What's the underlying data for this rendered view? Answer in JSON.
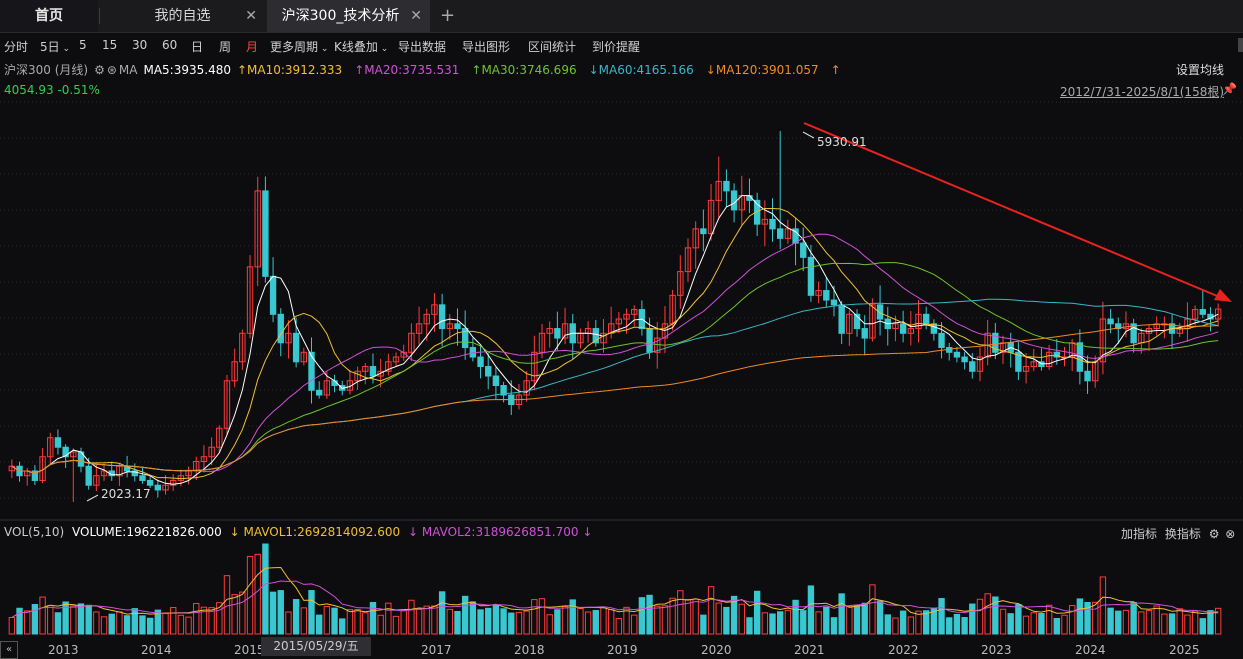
{
  "tabs": {
    "home": "首页",
    "watchlist": "我的自选",
    "active": "沪深300_技术分析",
    "close_glyph": "✕",
    "add_glyph": "+"
  },
  "toolbar": {
    "items": [
      "分时",
      "5日",
      "5",
      "15",
      "30",
      "60",
      "日",
      "周",
      "月",
      "更多周期",
      "K线叠加",
      "导出数据",
      "导出图形",
      "区间统计",
      "到价提醒"
    ],
    "active": "月"
  },
  "ma_header": {
    "title": "沪深300 (月线)",
    "ma_label": "MA",
    "ma5": "MA5:3935.480",
    "ma10": "MA10:3912.333",
    "ma20": "MA20:3735.531",
    "ma30": "MA30:3746.696",
    "ma60": "MA60:4165.166",
    "ma120": "MA120:3901.057",
    "settings": "设置均线"
  },
  "colors": {
    "up": "#ff3b3b",
    "down": "#39c7d0",
    "ma5": "#ffffff",
    "ma10": "#f0c030",
    "ma20": "#d050d8",
    "ma30": "#6fc32a",
    "ma60": "#39b7c8",
    "ma120": "#f08a24",
    "trend": "#e8231e"
  },
  "price": {
    "last": "4054.93",
    "change": "-0.51%",
    "range": "2012/7/31-2025/8/1(158根)"
  },
  "annotations": {
    "high": "5930.91",
    "low": "2023.17"
  },
  "volume_header": {
    "label": "VOL(5,10)",
    "volume": "VOLUME:196221826.000",
    "mavol1": "MAVOL1:2692814092.600",
    "mavol2": "MAVOL2:3189626851.700",
    "add": "加指标",
    "switch": "换指标"
  },
  "xaxis": {
    "years": [
      "2013",
      "2014",
      "2015",
      "2016",
      "2017",
      "2018",
      "2019",
      "2020",
      "2021",
      "2022",
      "2023",
      "2024",
      "2025"
    ],
    "cursor_date": "2015/05/29/五"
  },
  "chart_data": {
    "type": "candlestick",
    "period": "monthly",
    "xrange": [
      "2012-07",
      "2025-08"
    ],
    "high": 5930.91,
    "low": 2023.17,
    "close_approx": [
      2400,
      2300,
      2350,
      2250,
      2500,
      2700,
      2600,
      2500,
      2550,
      2400,
      2200,
      2300,
      2350,
      2300,
      2400,
      2350,
      2300,
      2250,
      2200,
      2150,
      2200,
      2250,
      2300,
      2350,
      2450,
      2500,
      2600,
      2800,
      3300,
      3500,
      3800,
      4500,
      5300,
      4400,
      4000,
      3700,
      3800,
      3500,
      3600,
      3200,
      3150,
      3300,
      3250,
      3200,
      3300,
      3400,
      3450,
      3350,
      3400,
      3500,
      3550,
      3600,
      3800,
      3900,
      4000,
      4100,
      3850,
      3900,
      3850,
      3650,
      3550,
      3450,
      3350,
      3250,
      3150,
      3050,
      3150,
      3300,
      3600,
      3800,
      3850,
      3750,
      3900,
      3700,
      3800,
      3850,
      3700,
      3800,
      3900,
      3950,
      4000,
      4050,
      3850,
      3600,
      3750,
      3900,
      4200,
      4450,
      4700,
      4900,
      4850,
      5200,
      5400,
      5300,
      5100,
      5250,
      5200,
      4950,
      5000,
      4900,
      4800,
      4900,
      4750,
      4600,
      4200,
      4250,
      4150,
      4100,
      3800,
      4000,
      3850,
      3750,
      4100,
      3950,
      3850,
      3900,
      3800,
      3850,
      4000,
      3900,
      3800,
      3650,
      3600,
      3550,
      3500,
      3400,
      3550,
      3800,
      3600,
      3700,
      3600,
      3400,
      3450,
      3500,
      3450,
      3600,
      3550,
      3550,
      3700,
      3400,
      3300,
      3500,
      3950,
      3900,
      3850,
      3900,
      3700,
      3800,
      3850,
      3900,
      3900,
      3800,
      3850,
      3950,
      4050,
      4000,
      3950,
      4054.93
    ]
  }
}
